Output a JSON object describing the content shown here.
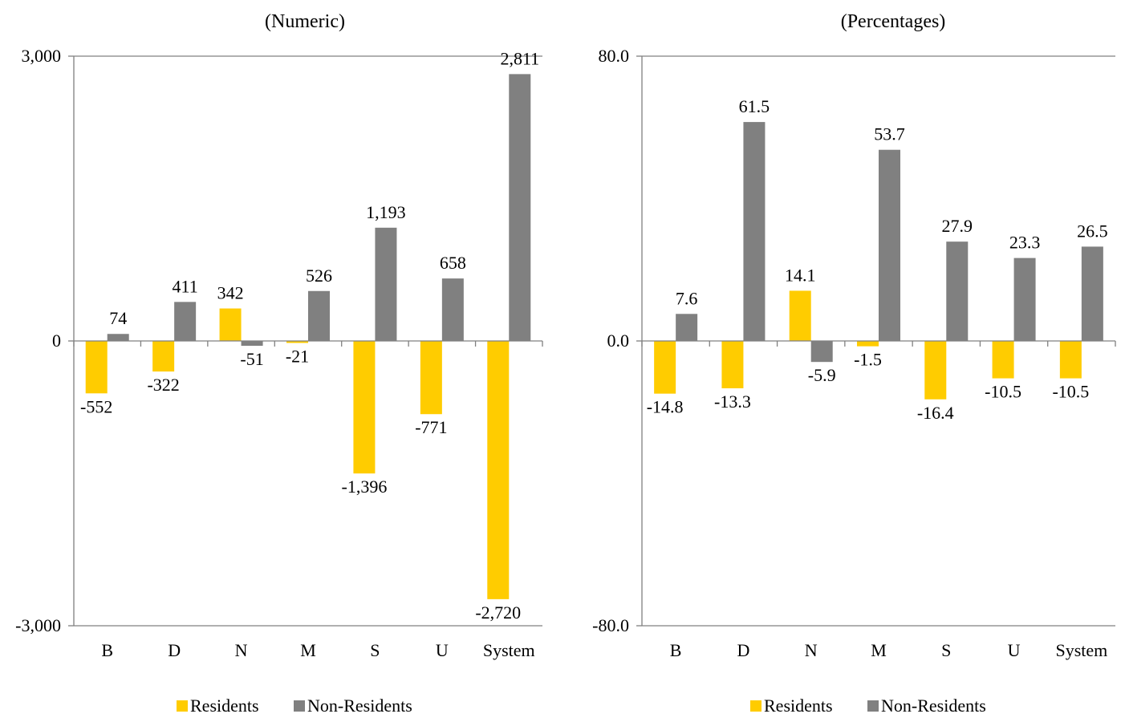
{
  "colors": {
    "residents": "#FFCC00",
    "non_residents": "#808080",
    "axis": "#808080"
  },
  "chart_data": [
    {
      "type": "bar",
      "title": "(Numeric)",
      "categories": [
        "B",
        "D",
        "N",
        "M",
        "S",
        "U",
        "System"
      ],
      "series": [
        {
          "name": "Residents",
          "values": [
            -552,
            -322,
            342,
            -21,
            -1396,
            -771,
            -2720
          ],
          "labels": [
            "-552",
            "-322",
            "342",
            "-21",
            "-1,396",
            "-771",
            "-2,720"
          ]
        },
        {
          "name": "Non-Residents",
          "values": [
            74,
            411,
            -51,
            526,
            1193,
            658,
            2811
          ],
          "labels": [
            "74",
            "411",
            "-51",
            "526",
            "1,193",
            "658",
            "2,811"
          ]
        }
      ],
      "ylim": [
        -3000,
        3000
      ],
      "yticks": [
        -3000,
        0,
        3000
      ],
      "ytick_labels": [
        "-3,000",
        "0",
        "3,000"
      ],
      "grid": false,
      "legend": "bottom"
    },
    {
      "type": "bar",
      "title": "(Percentages)",
      "categories": [
        "B",
        "D",
        "N",
        "M",
        "S",
        "U",
        "System"
      ],
      "series": [
        {
          "name": "Residents",
          "values": [
            -14.8,
            -13.3,
            14.1,
            -1.5,
            -16.4,
            -10.5,
            -10.5
          ],
          "labels": [
            "-14.8",
            "-13.3",
            "14.1",
            "-1.5",
            "-16.4",
            "-10.5",
            "-10.5"
          ]
        },
        {
          "name": "Non-Residents",
          "values": [
            7.6,
            61.5,
            -5.9,
            53.7,
            27.9,
            23.3,
            26.5
          ],
          "labels": [
            "7.6",
            "61.5",
            "-5.9",
            "53.7",
            "27.9",
            "23.3",
            "26.5"
          ]
        }
      ],
      "ylim": [
        -80,
        80
      ],
      "yticks": [
        -80,
        0,
        80
      ],
      "ytick_labels": [
        "-80.0",
        "0.0",
        "80.0"
      ],
      "grid": false,
      "legend": "bottom"
    }
  ]
}
